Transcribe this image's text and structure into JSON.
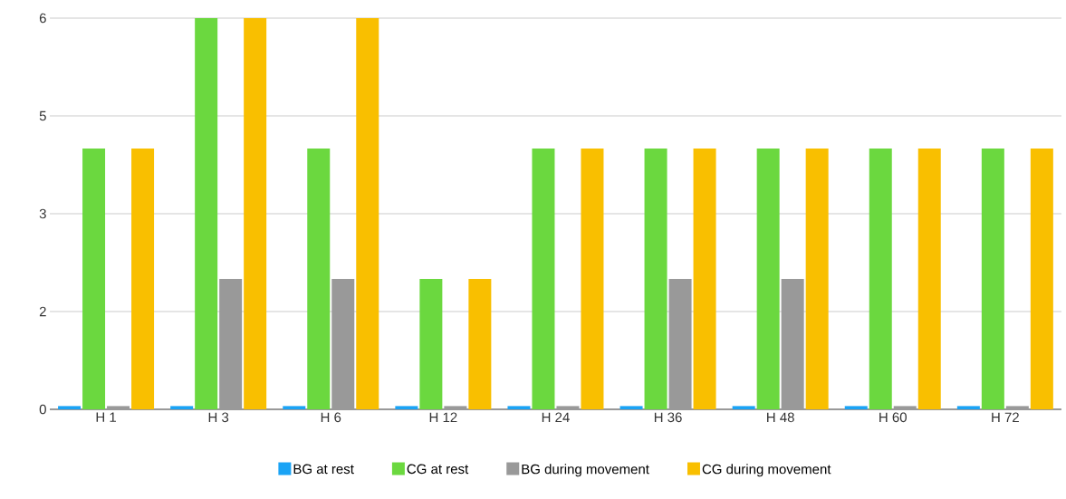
{
  "chart_data": {
    "type": "bar",
    "categories": [
      "H 1",
      "H 3",
      "H 6",
      "H 12",
      "H 24",
      "H 36",
      "H 48",
      "H 60",
      "H 72"
    ],
    "series": [
      {
        "name": "BG at rest",
        "color": "#1aa3f5",
        "values": [
          0.05,
          0.05,
          0.05,
          0.05,
          0.05,
          0.05,
          0.05,
          0.05,
          0.05
        ]
      },
      {
        "name": "CG at rest",
        "color": "#6bd83f",
        "values": [
          4,
          6,
          4,
          2,
          4,
          4,
          4,
          4,
          4
        ]
      },
      {
        "name": "BG during movement",
        "color": "#999999",
        "values": [
          0.05,
          2,
          2,
          0.05,
          0.05,
          2,
          2,
          0.05,
          0.05
        ]
      },
      {
        "name": "CG during movement",
        "color": "#f9bf00",
        "values": [
          4,
          6,
          6,
          2,
          4,
          4,
          4,
          4,
          4
        ]
      }
    ],
    "ylim": [
      0,
      6
    ],
    "yticks": [
      0,
      {
        "value": 1.5,
        "label": "2"
      },
      3,
      {
        "value": 4.5,
        "label": "5"
      },
      6
    ],
    "grid": "y",
    "legend": "bottom"
  }
}
